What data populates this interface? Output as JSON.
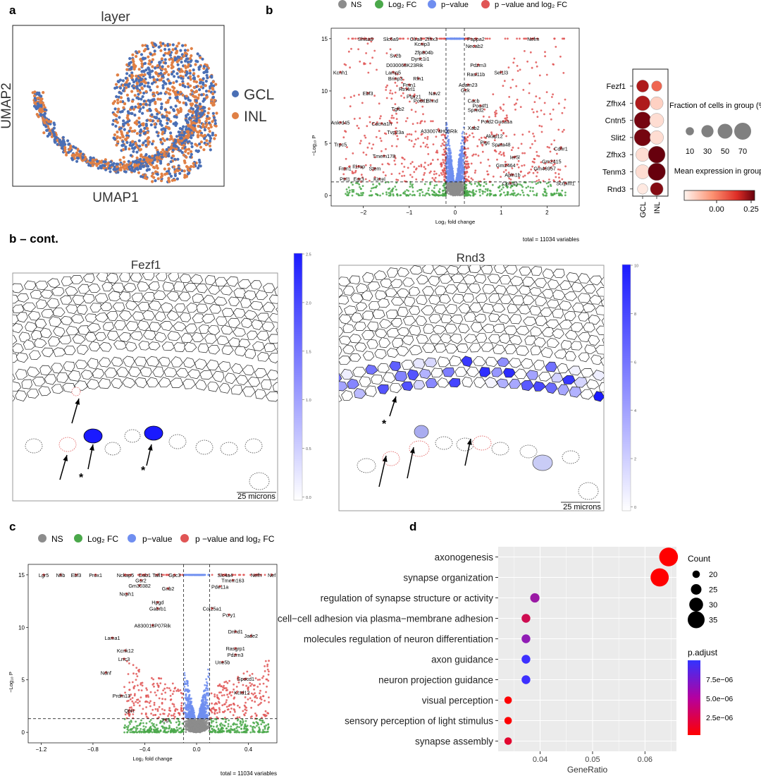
{
  "panel_labels": {
    "a": "a",
    "b": "b",
    "b_cont": "b – cont.",
    "c": "c",
    "d": "d"
  },
  "colors": {
    "gcl": "#4a6fb5",
    "inl": "#e08045",
    "ns": "#8c8c8c",
    "log2fc": "#4aa84a",
    "pvalue": "#6f8ef0",
    "both": "#e05555",
    "blue_scale": "#1a1aff",
    "dot_red": "#c81e1e"
  },
  "chart_data": [
    {
      "id": "umap",
      "type": "scatter",
      "title": "layer",
      "xlabel": "UMAP1",
      "ylabel": "UMAP2",
      "legend": [
        "GCL",
        "INL"
      ],
      "legend_position": "right",
      "grid": false
    },
    {
      "id": "volcano_b",
      "type": "scatter",
      "legend": [
        "NS",
        "Log₂ FC",
        "p−value",
        "p −value and log₂ FC"
      ],
      "xlabel": "Log₂ fold change",
      "ylabel": "−Log₁₀ P",
      "xlim": [
        -2.7,
        2.7
      ],
      "ylim": [
        -1,
        16
      ],
      "xticks": [
        -2,
        -1,
        0,
        1,
        2
      ],
      "yticks": [
        0,
        5,
        10,
        15
      ],
      "fc_cutoff": 0.2,
      "p_cutoff_neglog10": 1.3,
      "caption": "total = 11034 variables",
      "labels": [
        {
          "t": "Shisa9",
          "x": -1.95,
          "y": 15
        },
        {
          "t": "Slc6a9",
          "x": -1.4,
          "y": 15
        },
        {
          "t": "Glra8",
          "x": -0.85,
          "y": 15
        },
        {
          "t": "Zfhx3",
          "x": -0.52,
          "y": 15
        },
        {
          "t": "Pappa2",
          "x": 0.45,
          "y": 15
        },
        {
          "t": "Nefm",
          "x": 1.7,
          "y": 15
        },
        {
          "t": "Kcnip3",
          "x": -0.72,
          "y": 14.5
        },
        {
          "t": "Necab2",
          "x": 0.42,
          "y": 14.3
        },
        {
          "t": "Zfp804b",
          "x": -0.68,
          "y": 13.7
        },
        {
          "t": "Sv2b",
          "x": -1.3,
          "y": 13.4
        },
        {
          "t": "Dync1i1",
          "x": -0.76,
          "y": 13.1
        },
        {
          "t": "D030068K23Rik",
          "x": -1.1,
          "y": 12.5
        },
        {
          "t": "Pdzrn3",
          "x": 0.5,
          "y": 12.5
        },
        {
          "t": "Kcnh1",
          "x": -2.5,
          "y": 11.8
        },
        {
          "t": "Lamp5",
          "x": -1.35,
          "y": 11.8
        },
        {
          "t": "Sel1l3",
          "x": 1.0,
          "y": 11.8
        },
        {
          "t": "Rasl11b",
          "x": 0.45,
          "y": 11.6
        },
        {
          "t": "Brinp3",
          "x": -1.3,
          "y": 11.2
        },
        {
          "t": "Rfn1",
          "x": -0.8,
          "y": 11.2
        },
        {
          "t": "Fmn1",
          "x": -1.0,
          "y": 10.6
        },
        {
          "t": "Adam23",
          "x": 0.28,
          "y": 10.6
        },
        {
          "t": "Rtn4rl1",
          "x": -1.05,
          "y": 10.2
        },
        {
          "t": "Gck",
          "x": 0.22,
          "y": 10.1
        },
        {
          "t": "Ebf3",
          "x": -1.9,
          "y": 9.8
        },
        {
          "t": "Nav2",
          "x": -0.45,
          "y": 9.8
        },
        {
          "t": "Ptprz1",
          "x": -0.9,
          "y": 9.5
        },
        {
          "t": "Cacb",
          "x": 0.4,
          "y": 9.1
        },
        {
          "t": "Podtl1",
          "x": -0.75,
          "y": 9.1
        },
        {
          "t": "Bhnd",
          "x": -0.5,
          "y": 9.1
        },
        {
          "t": "Tgfb2",
          "x": -1.25,
          "y": 8.3
        },
        {
          "t": "Pou4f1",
          "x": 0.55,
          "y": 8.6
        },
        {
          "t": "Spred2",
          "x": 0.45,
          "y": 8.2
        },
        {
          "t": "Ankrd45",
          "x": -2.5,
          "y": 7.0
        },
        {
          "t": "Cacna1h",
          "x": -1.6,
          "y": 6.9
        },
        {
          "t": "Pold2",
          "x": 0.7,
          "y": 7.1
        },
        {
          "t": "Guca1a",
          "x": 1.05,
          "y": 7.1
        },
        {
          "t": "Tvp23a",
          "x": -1.3,
          "y": 6.1
        },
        {
          "t": "Xab2",
          "x": 0.4,
          "y": 6.5
        },
        {
          "t": "A330074H08Rik",
          "x": -0.35,
          "y": 6.2
        },
        {
          "t": "Akap12",
          "x": 0.85,
          "y": 5.7
        },
        {
          "t": "Trpc5",
          "x": -2.5,
          "y": 4.9
        },
        {
          "t": "Pigc",
          "x": 0.65,
          "y": 5.1
        },
        {
          "t": "Spata48",
          "x": 1.0,
          "y": 4.9
        },
        {
          "t": "Cdhr1",
          "x": 2.3,
          "y": 4.5
        },
        {
          "t": "Tmem178",
          "x": -1.55,
          "y": 3.8
        },
        {
          "t": "Ier5l",
          "x": 1.3,
          "y": 3.7
        },
        {
          "t": "Gm2415",
          "x": 2.1,
          "y": 3.3
        },
        {
          "t": "Gm2464",
          "x": 1.1,
          "y": 2.9
        },
        {
          "t": "Gm46957",
          "x": 1.95,
          "y": 2.6
        },
        {
          "t": "Il1rap",
          "x": -2.1,
          "y": 2.8
        },
        {
          "t": "Fmn1",
          "x": -2.4,
          "y": 2.6
        },
        {
          "t": "Stem",
          "x": -1.75,
          "y": 2.6
        },
        {
          "t": "Ptrl1",
          "x": -2.4,
          "y": 1.6
        },
        {
          "t": "Egr3",
          "x": -2.1,
          "y": 1.6
        },
        {
          "t": "Kirrel",
          "x": -1.65,
          "y": 1.6
        },
        {
          "t": "Scrpinf1",
          "x": 2.4,
          "y": 1.2
        },
        {
          "t": "Cpxm1",
          "x": 1.2,
          "y": 1.2
        },
        {
          "t": "Apln1b",
          "x": 1.25,
          "y": 2.0
        }
      ]
    },
    {
      "id": "dotplot",
      "type": "dot",
      "genes": [
        "Fezf1",
        "Zfhx4",
        "Cntn5",
        "Slit2",
        "Zfhx3",
        "Tenm3",
        "Rnd3"
      ],
      "groups": [
        "GCL",
        "INL"
      ],
      "fraction": [
        [
          30,
          20
        ],
        [
          50,
          35
        ],
        [
          70,
          45
        ],
        [
          70,
          40
        ],
        [
          40,
          70
        ],
        [
          45,
          75
        ],
        [
          20,
          35
        ]
      ],
      "mean_expression": [
        [
          0.2,
          0.12
        ],
        [
          0.2,
          0.03
        ],
        [
          0.24,
          0.02
        ],
        [
          0.24,
          0.02
        ],
        [
          0.02,
          0.25
        ],
        [
          0.02,
          0.25
        ],
        [
          0.01,
          0.23
        ]
      ],
      "size_legend_title": "Fraction of cells in group (%)",
      "size_legend_values": [
        10,
        30,
        50,
        70
      ],
      "color_legend_title": "Mean expression in group",
      "color_ticks": [
        "0.00",
        "0.25"
      ]
    },
    {
      "id": "spatial_fezf1",
      "type": "heatmap",
      "title": "Fezf1",
      "colorbar_ticks": [
        "2.5",
        "2.0",
        "1.5",
        "1.0",
        "0.5",
        "0.0"
      ],
      "scalebar": "25 microns",
      "markers": [
        "*",
        "*"
      ]
    },
    {
      "id": "spatial_rnd3",
      "type": "heatmap",
      "title": "Rnd3",
      "colorbar_ticks": [
        "10",
        "8",
        "6",
        "4",
        "2",
        "0"
      ],
      "scalebar": "25 microns",
      "markers": [
        "*"
      ]
    },
    {
      "id": "volcano_c",
      "type": "scatter",
      "legend": [
        "NS",
        "Log₂ FC",
        "p−value",
        "p −value and log₂ FC"
      ],
      "xlabel": "Log₂ fold change",
      "ylabel": "−Log₁₀ P",
      "xlim": [
        -1.3,
        0.62
      ],
      "ylim": [
        -1,
        16
      ],
      "xticks": [
        -1.2,
        -0.8,
        -0.4,
        0.0,
        0.4
      ],
      "yticks": [
        0,
        5,
        10,
        15
      ],
      "xtick_labels": [
        "−1.2",
        "−0.8",
        "−0.4",
        "0.0",
        "0.4"
      ],
      "fc_cutoff": 0.1,
      "p_cutoff_neglog10": 1.3,
      "caption": "total = 11034 variables",
      "labels": [
        {
          "t": "Lgr5",
          "x": -1.18,
          "y": 15
        },
        {
          "t": "Nfib",
          "x": -1.05,
          "y": 15
        },
        {
          "t": "Ebf3",
          "x": -0.93,
          "y": 15
        },
        {
          "t": "Prox1",
          "x": -0.78,
          "y": 15
        },
        {
          "t": "Nckap5",
          "x": -0.55,
          "y": 15
        },
        {
          "t": "Dab1",
          "x": -0.4,
          "y": 15
        },
        {
          "t": "Tafl1",
          "x": -0.3,
          "y": 15
        },
        {
          "t": "Gpc3",
          "x": -0.17,
          "y": 15
        },
        {
          "t": "Slc4a4",
          "x": 0.22,
          "y": 15
        },
        {
          "t": "Nefh",
          "x": 0.46,
          "y": 15
        },
        {
          "t": "Nef",
          "x": 0.58,
          "y": 15
        },
        {
          "t": "Tmem163",
          "x": 0.28,
          "y": 14.5
        },
        {
          "t": "Gsr2",
          "x": -0.43,
          "y": 14.5
        },
        {
          "t": "Gm30382",
          "x": -0.44,
          "y": 14.0
        },
        {
          "t": "Gnb2",
          "x": -0.22,
          "y": 13.7
        },
        {
          "t": "Pde11a",
          "x": 0.18,
          "y": 13.9
        },
        {
          "t": "Nxph1",
          "x": -0.54,
          "y": 13.2
        },
        {
          "t": "Hpgd",
          "x": -0.3,
          "y": 12.4
        },
        {
          "t": "Gabrb1",
          "x": -0.3,
          "y": 11.8
        },
        {
          "t": "Col25a1",
          "x": 0.12,
          "y": 11.8
        },
        {
          "t": "Pcry1",
          "x": 0.25,
          "y": 11.2
        },
        {
          "t": "A830018P07Rik",
          "x": -0.34,
          "y": 10.2
        },
        {
          "t": "Dnhd1",
          "x": 0.3,
          "y": 9.6
        },
        {
          "t": "Jade2",
          "x": 0.42,
          "y": 9.2
        },
        {
          "t": "Lama1",
          "x": -0.65,
          "y": 9.0
        },
        {
          "t": "Kcnk12",
          "x": -0.55,
          "y": 7.8
        },
        {
          "t": "Rasgrp1",
          "x": 0.3,
          "y": 8.0
        },
        {
          "t": "Pdzrn3",
          "x": 0.3,
          "y": 7.4
        },
        {
          "t": "Lrrc3",
          "x": -0.56,
          "y": 7.0
        },
        {
          "t": "Une5b",
          "x": 0.2,
          "y": 6.7
        },
        {
          "t": "Ndnf",
          "x": -0.7,
          "y": 5.7
        },
        {
          "t": "Spocd1",
          "x": 0.38,
          "y": 5.1
        },
        {
          "t": "Prdm13",
          "x": -0.58,
          "y": 3.5
        },
        {
          "t": "Kctd12",
          "x": 0.35,
          "y": 3.8
        },
        {
          "t": "Qprt",
          "x": -0.52,
          "y": 2.1
        },
        {
          "t": "Zfp",
          "x": -0.24,
          "y": 1.2
        }
      ]
    },
    {
      "id": "go_dot",
      "type": "scatter",
      "categories": [
        "axonogenesis",
        "synapse organization",
        "regulation of synapse structure or activity",
        "cell−cell adhesion via plasma−membrane adhesion",
        "molecules regulation of neuron differentiation",
        "axon guidance",
        "neuron projection guidance",
        "visual perception",
        "sensory perception of light stimulus",
        "synapse assembly"
      ],
      "gene_ratio": [
        0.0645,
        0.0628,
        0.039,
        0.0373,
        0.0373,
        0.0373,
        0.0373,
        0.0339,
        0.0339,
        0.0339
      ],
      "count": [
        38,
        37,
        23,
        22,
        22,
        22,
        22,
        20,
        20,
        20
      ],
      "p_adjust": [
        1e-07,
        1e-07,
        5e-06,
        2.5e-06,
        5.5e-06,
        9.5e-06,
        9.5e-06,
        2e-07,
        2e-07,
        1.5e-06
      ],
      "xlabel": "GeneRatio",
      "xlim": [
        0.032,
        0.066
      ],
      "xticks": [
        0.04,
        0.05,
        0.06
      ],
      "xtick_labels": [
        "0.04",
        "0.05",
        "0.06"
      ],
      "size_legend_title": "Count",
      "size_legend_values": [
        20,
        25,
        30,
        35
      ],
      "color_legend_title": "p.adjust",
      "color_ticks": [
        "7.5e−06",
        "5.0e−06",
        "2.5e−06"
      ]
    }
  ]
}
